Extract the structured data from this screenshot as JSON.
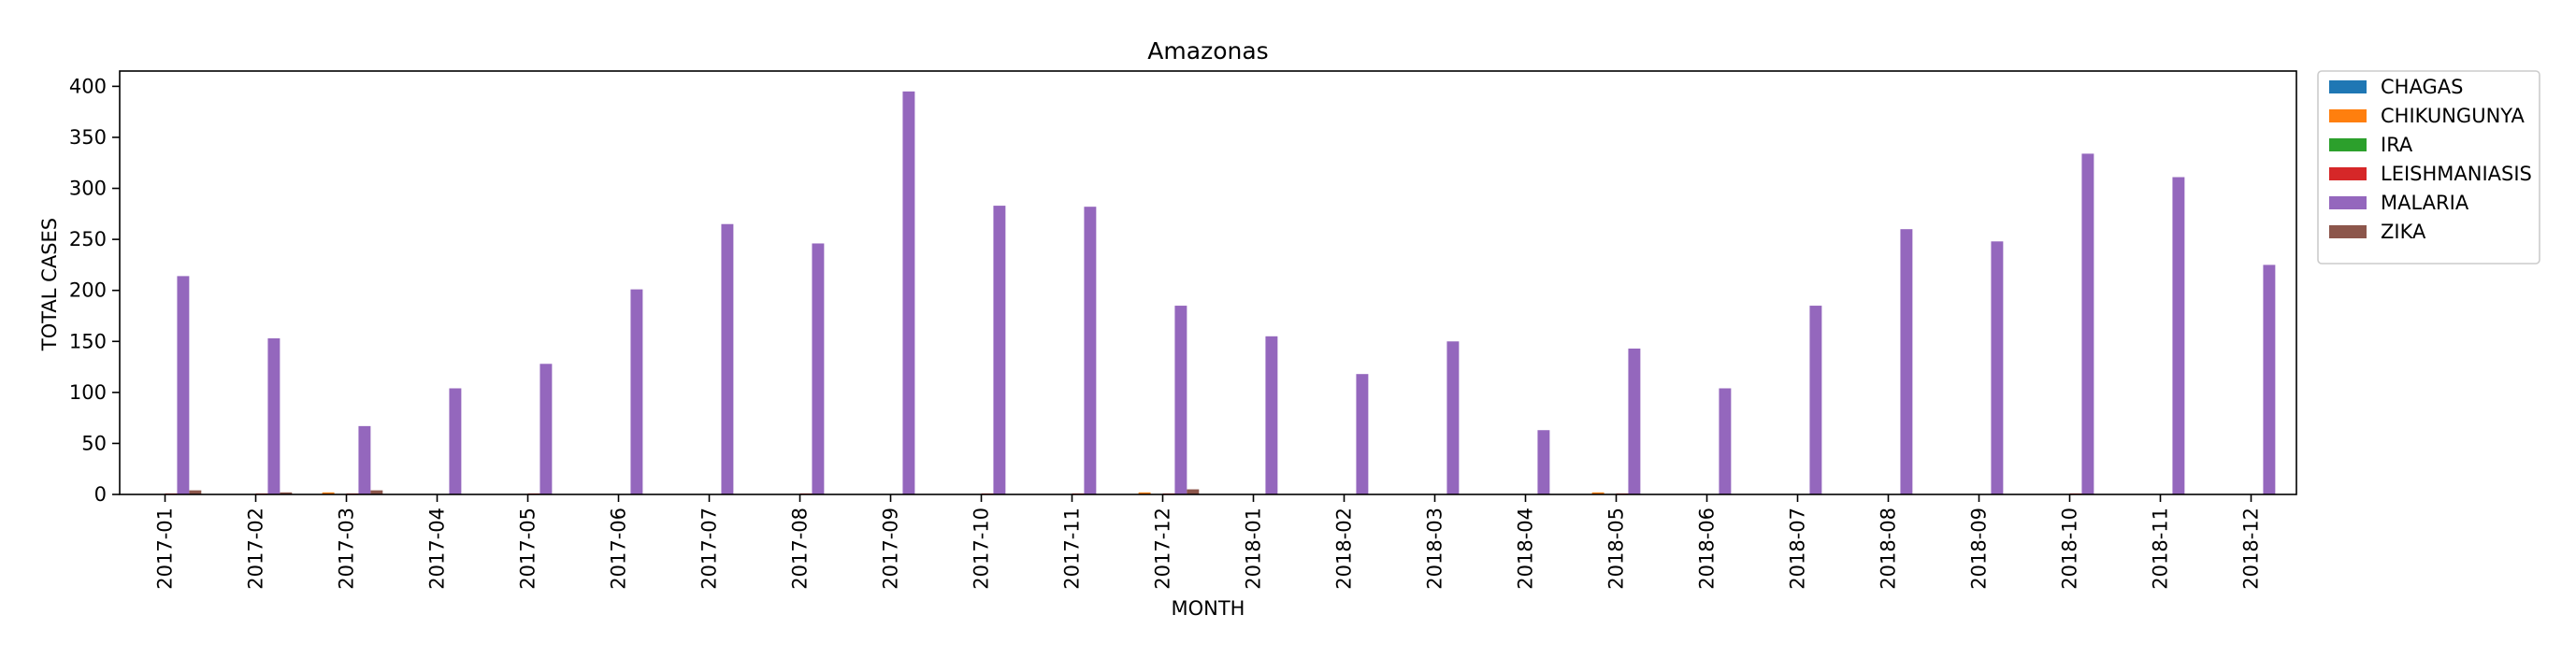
{
  "chart_data": {
    "type": "bar",
    "title": "Amazonas",
    "xlabel": "MONTH",
    "ylabel": "TOTAL CASES",
    "ylim": [
      0,
      415
    ],
    "yticks": [
      0,
      50,
      100,
      150,
      200,
      250,
      300,
      350,
      400
    ],
    "grid": false,
    "legend_position": "outside-top-right",
    "categories": [
      "2017-01",
      "2017-02",
      "2017-03",
      "2017-04",
      "2017-05",
      "2017-06",
      "2017-07",
      "2017-08",
      "2017-09",
      "2017-10",
      "2017-11",
      "2017-12",
      "2018-01",
      "2018-02",
      "2018-03",
      "2018-04",
      "2018-05",
      "2018-06",
      "2018-07",
      "2018-08",
      "2018-09",
      "2018-10",
      "2018-11",
      "2018-12"
    ],
    "series": [
      {
        "name": "CHAGAS",
        "color": "#1f77b4",
        "values": [
          0,
          0,
          0,
          0,
          0,
          0,
          0,
          0,
          0,
          0,
          0,
          0,
          0,
          0,
          0,
          0,
          0,
          0,
          0,
          0,
          0,
          0,
          0,
          0
        ]
      },
      {
        "name": "CHIKUNGUNYA",
        "color": "#ff7f0e",
        "values": [
          0,
          0,
          2,
          0,
          0,
          0,
          0,
          0,
          0,
          0,
          0,
          2,
          0,
          0,
          0,
          0,
          2,
          0,
          0,
          0,
          0,
          0,
          0,
          0
        ]
      },
      {
        "name": "IRA",
        "color": "#2ca02c",
        "values": [
          0,
          0,
          0,
          0,
          0,
          0,
          0,
          0,
          0,
          0,
          0,
          0,
          0,
          0,
          0,
          0,
          0,
          0,
          0,
          0,
          0,
          0,
          0,
          0
        ]
      },
      {
        "name": "LEISHMANIASIS",
        "color": "#d62728",
        "values": [
          1,
          1,
          1,
          0,
          1,
          0,
          0,
          1,
          0,
          1,
          1,
          1,
          0,
          0,
          0,
          0,
          1,
          0,
          0,
          0,
          0,
          1,
          0,
          0
        ]
      },
      {
        "name": "MALARIA",
        "color": "#9467bd",
        "values": [
          214,
          153,
          67,
          104,
          128,
          201,
          265,
          246,
          395,
          283,
          282,
          185,
          155,
          118,
          150,
          63,
          143,
          104,
          185,
          260,
          248,
          334,
          311,
          225
        ]
      },
      {
        "name": "ZIKA",
        "color": "#8c564b",
        "values": [
          4,
          2,
          4,
          0,
          0,
          0,
          0,
          0,
          0,
          0,
          0,
          5,
          0,
          0,
          0,
          0,
          0,
          0,
          0,
          0,
          0,
          0,
          0,
          0
        ]
      }
    ]
  }
}
